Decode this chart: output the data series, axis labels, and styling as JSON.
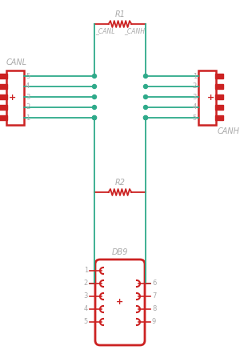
{
  "bg_color": "#ffffff",
  "wire_color": "#2eaa8a",
  "component_color": "#cc2222",
  "label_color": "#aaaaaa",
  "dot_color": "#2eaa8a",
  "figsize": [
    3.0,
    4.47
  ],
  "dpi": 100,
  "r1_label": "R1",
  "r2_label": "R2",
  "canl_label": "CANL",
  "canh_label": "CANH",
  "db9_label": "DB9",
  "canl_sub": "_CANL",
  "canh_sub": "_CANH"
}
